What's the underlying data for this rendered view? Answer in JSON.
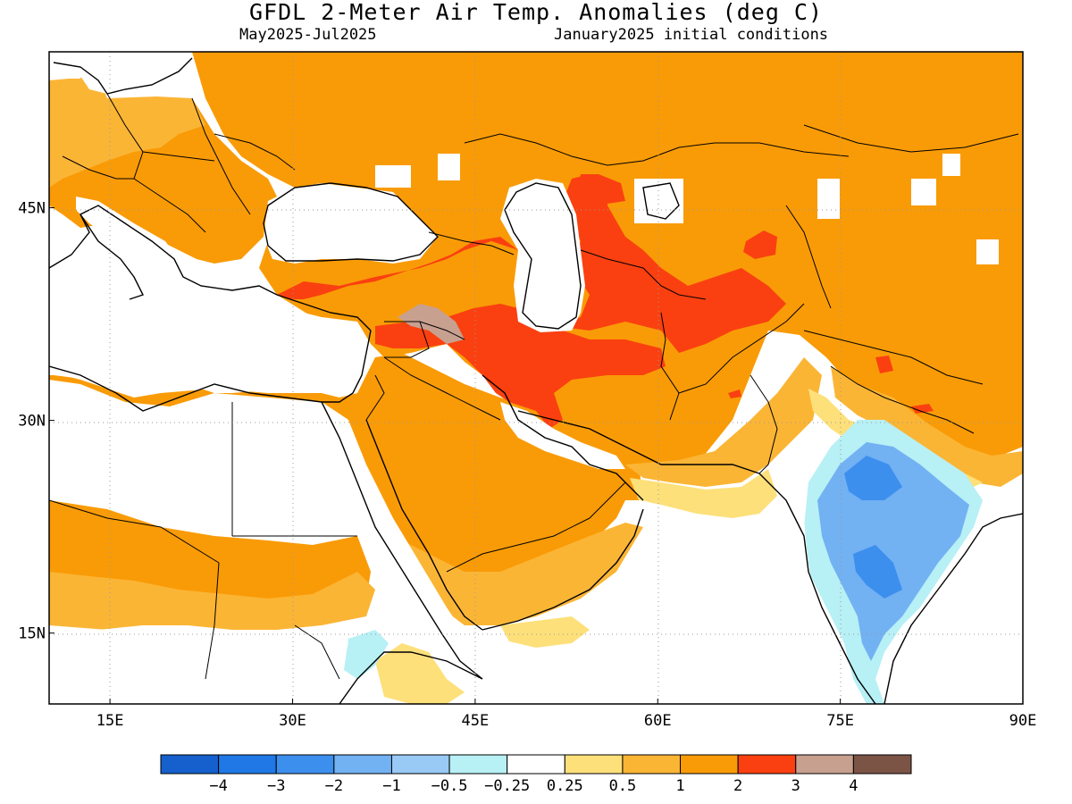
{
  "header": {
    "title": "GFDL 2-Meter Air Temp. Anomalies (deg C)",
    "period": "May2025-Jul2025",
    "init": "January2025 initial conditions"
  },
  "axes": {
    "lon_range": [
      10,
      90
    ],
    "lat_range": [
      10,
      56
    ],
    "lon_ticks": [
      {
        "value": 15,
        "label": "15E"
      },
      {
        "value": 30,
        "label": "30E"
      },
      {
        "value": 45,
        "label": "45E"
      },
      {
        "value": 60,
        "label": "60E"
      },
      {
        "value": 75,
        "label": "75E"
      },
      {
        "value": 90,
        "label": "90E"
      }
    ],
    "lat_ticks": [
      {
        "value": 45,
        "label": "45N"
      },
      {
        "value": 30,
        "label": "30N"
      },
      {
        "value": 15,
        "label": "15N"
      }
    ]
  },
  "colorbar": {
    "colors": [
      "#1560cc",
      "#1f78e6",
      "#3d8fee",
      "#72b1f2",
      "#99c9f5",
      "#b7f0f5",
      "#ffffff",
      "#fde07a",
      "#fbb535",
      "#f99b07",
      "#fa4010",
      "#c8a090",
      "#7c5446"
    ],
    "labels": [
      "−4",
      "−3",
      "−2",
      "−1",
      "−0.5",
      "−0.25",
      "0.25",
      "0.5",
      "1",
      "2",
      "3",
      "4"
    ]
  },
  "map": {
    "anomaly_regions": [
      {
        "bin": "1-2",
        "color": "#f99b07",
        "description": "Central Asia, Mongolia/China, Europe, N Africa, Arabia, Iran"
      },
      {
        "bin": "0.5-1",
        "color": "#fbb535",
        "description": "W Europe, Sahel, SE Arabia, Himalaya edges"
      },
      {
        "bin": "0.25-0.5",
        "color": "#fde07a",
        "description": "thin edges around Arabian Sea and Himalaya"
      },
      {
        "bin": "2-3",
        "color": "#fa4010",
        "description": "Turkey, Iraq, Iran, Turkmenistan, Uzbekistan, Afghanistan"
      },
      {
        "bin": "3-4",
        "color": "#c8a090",
        "description": "S Turkey / N Syria"
      },
      {
        "bin": "-0.5 to -0.25",
        "color": "#b7f0f5",
        "description": "India, Ethiopia"
      },
      {
        "bin": "-1 to -0.5",
        "color": "#99c9f5",
        "description": "Central India"
      },
      {
        "bin": "-2 to -1",
        "color": "#72b1f2",
        "description": "Central India core"
      }
    ]
  }
}
